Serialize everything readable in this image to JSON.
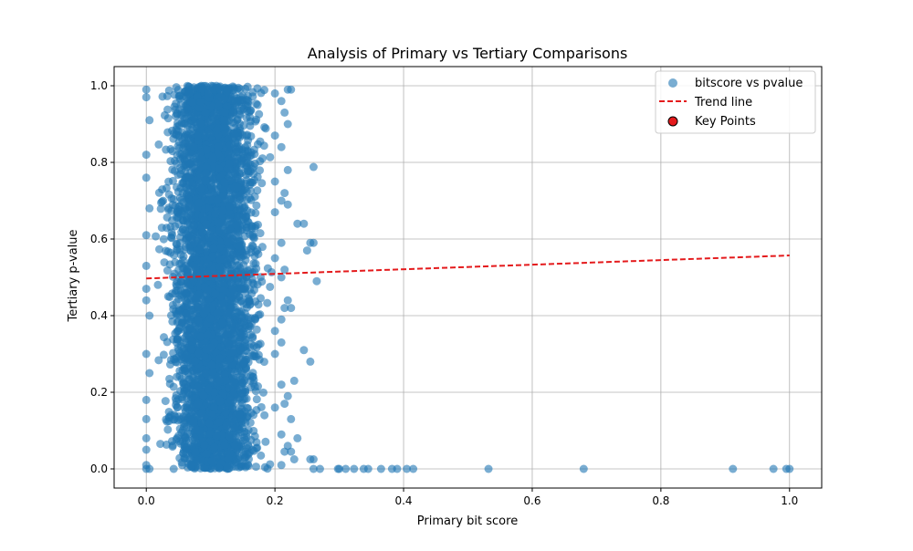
{
  "chart_data": {
    "type": "scatter",
    "title": "Analysis of Primary vs Tertiary Comparisons",
    "xlabel": "Primary bit score",
    "ylabel": "Tertiary p-value",
    "xlim": [
      -0.05,
      1.05
    ],
    "ylim": [
      -0.05,
      1.05
    ],
    "xticks": [
      0.0,
      0.2,
      0.4,
      0.6,
      0.8,
      1.0
    ],
    "xtick_labels": [
      "0.0",
      "0.2",
      "0.4",
      "0.6",
      "0.8",
      "1.0"
    ],
    "yticks": [
      0.0,
      0.2,
      0.4,
      0.6,
      0.8,
      1.0
    ],
    "ytick_labels": [
      "0.0",
      "0.2",
      "0.4",
      "0.6",
      "0.8",
      "1.0"
    ],
    "grid": true,
    "legend_position": "top-right",
    "colors": {
      "points": "#1f77b4",
      "trend": "#e41a1c",
      "key_points_fill": "#e41a1c",
      "key_points_edge": "#000000",
      "grid": "#b0b0b0"
    },
    "series": [
      {
        "name": "bitscore vs pvalue",
        "kind": "scatter",
        "note_cloud": {
          "x_range": [
            0.0,
            0.2
          ],
          "y_range": [
            0.0,
            1.0
          ],
          "description": "dense cloud"
        },
        "points": [
          [
            0.0,
            0.99
          ],
          [
            0.0,
            0.97
          ],
          [
            0.0,
            0.82
          ],
          [
            0.0,
            0.76
          ],
          [
            0.0,
            0.61
          ],
          [
            0.0,
            0.53
          ],
          [
            0.0,
            0.47
          ],
          [
            0.0,
            0.44
          ],
          [
            0.0,
            0.3
          ],
          [
            0.0,
            0.18
          ],
          [
            0.0,
            0.13
          ],
          [
            0.0,
            0.08
          ],
          [
            0.0,
            0.05
          ],
          [
            0.0,
            0.01
          ],
          [
            0.0,
            0.0
          ],
          [
            0.005,
            0.91
          ],
          [
            0.005,
            0.68
          ],
          [
            0.005,
            0.4
          ],
          [
            0.005,
            0.25
          ],
          [
            0.005,
            0.0
          ],
          [
            0.2,
            0.98
          ],
          [
            0.21,
            0.96
          ],
          [
            0.22,
            0.99
          ],
          [
            0.225,
            0.99
          ],
          [
            0.215,
            0.93
          ],
          [
            0.22,
            0.9
          ],
          [
            0.2,
            0.87
          ],
          [
            0.21,
            0.84
          ],
          [
            0.22,
            0.78
          ],
          [
            0.2,
            0.75
          ],
          [
            0.215,
            0.72
          ],
          [
            0.21,
            0.7
          ],
          [
            0.22,
            0.69
          ],
          [
            0.2,
            0.67
          ],
          [
            0.235,
            0.64
          ],
          [
            0.245,
            0.64
          ],
          [
            0.21,
            0.59
          ],
          [
            0.255,
            0.59
          ],
          [
            0.26,
            0.59
          ],
          [
            0.25,
            0.57
          ],
          [
            0.2,
            0.55
          ],
          [
            0.215,
            0.52
          ],
          [
            0.21,
            0.5
          ],
          [
            0.265,
            0.49
          ],
          [
            0.22,
            0.44
          ],
          [
            0.215,
            0.42
          ],
          [
            0.225,
            0.42
          ],
          [
            0.21,
            0.39
          ],
          [
            0.2,
            0.36
          ],
          [
            0.21,
            0.33
          ],
          [
            0.245,
            0.31
          ],
          [
            0.2,
            0.3
          ],
          [
            0.255,
            0.28
          ],
          [
            0.23,
            0.23
          ],
          [
            0.21,
            0.22
          ],
          [
            0.22,
            0.19
          ],
          [
            0.215,
            0.17
          ],
          [
            0.2,
            0.16
          ],
          [
            0.225,
            0.13
          ],
          [
            0.21,
            0.09
          ],
          [
            0.235,
            0.08
          ],
          [
            0.22,
            0.06
          ],
          [
            0.215,
            0.045
          ],
          [
            0.225,
            0.045
          ],
          [
            0.23,
            0.025
          ],
          [
            0.255,
            0.025
          ],
          [
            0.26,
            0.025
          ],
          [
            0.21,
            0.01
          ],
          [
            0.26,
            0.788
          ],
          [
            0.26,
            0.0
          ],
          [
            0.27,
            0.0
          ],
          [
            0.298,
            0.0
          ],
          [
            0.3,
            0.0
          ],
          [
            0.31,
            0.0
          ],
          [
            0.323,
            0.0
          ],
          [
            0.338,
            0.0
          ],
          [
            0.345,
            0.0
          ],
          [
            0.365,
            0.0
          ],
          [
            0.382,
            0.0
          ],
          [
            0.39,
            0.0
          ],
          [
            0.405,
            0.0
          ],
          [
            0.415,
            0.0
          ],
          [
            0.532,
            0.0
          ],
          [
            0.68,
            0.0
          ],
          [
            0.912,
            0.0
          ],
          [
            0.975,
            0.0
          ],
          [
            0.995,
            0.0
          ],
          [
            1.0,
            0.0
          ]
        ]
      },
      {
        "name": "Trend line",
        "kind": "line",
        "points": [
          [
            0.0,
            0.497
          ],
          [
            1.0,
            0.557
          ]
        ]
      },
      {
        "name": "Key Points",
        "kind": "scatter-highlight",
        "points": []
      }
    ]
  }
}
